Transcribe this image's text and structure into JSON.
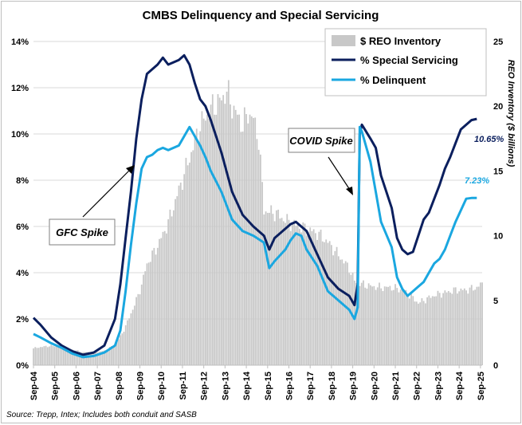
{
  "chart_data": {
    "type": "bar+line",
    "title": "CMBS Delinquency and Special Servicing",
    "y_left_label": "",
    "y_left_ticks": [
      "0%",
      "2%",
      "4%",
      "6%",
      "8%",
      "10%",
      "12%",
      "14%"
    ],
    "y_left_range": [
      0,
      14
    ],
    "y_right_label": "REO Inventory ($ billions)",
    "y_right_ticks": [
      "0",
      "5",
      "10",
      "15",
      "20",
      "25"
    ],
    "y_right_range": [
      0,
      25
    ],
    "x_range": [
      2004.67,
      2025.75
    ],
    "x_tick_labels": [
      "Sep-04",
      "Sep-05",
      "Sep-06",
      "Sep-07",
      "Sep-08",
      "Sep-09",
      "Sep-10",
      "Sep-11",
      "Sep-12",
      "Sep-13",
      "Sep-14",
      "Sep-15",
      "Sep-16",
      "Sep-17",
      "Sep-18",
      "Sep-19",
      "Sep-20",
      "Sep-21",
      "Sep-22",
      "Sep-23",
      "Sep-24",
      "Sep-25"
    ],
    "grid": "horizontal",
    "legend_position": "top-right",
    "series": [
      {
        "name": "$ REO Inventory",
        "type": "bar",
        "axis": "right",
        "color": "#c8c8c8",
        "points": [
          [
            2004.67,
            1.3
          ],
          [
            2005.0,
            1.4
          ],
          [
            2005.5,
            1.5
          ],
          [
            2006.0,
            1.4
          ],
          [
            2006.5,
            1.2
          ],
          [
            2007.0,
            1.0
          ],
          [
            2007.5,
            1.0
          ],
          [
            2008.0,
            1.1
          ],
          [
            2008.5,
            1.6
          ],
          [
            2008.75,
            2.2
          ],
          [
            2009.0,
            3.0
          ],
          [
            2009.25,
            4.0
          ],
          [
            2009.5,
            5.0
          ],
          [
            2009.75,
            6.2
          ],
          [
            2010.0,
            7.8
          ],
          [
            2010.5,
            9.2
          ],
          [
            2011.0,
            11.0
          ],
          [
            2011.5,
            13.5
          ],
          [
            2012.0,
            16.0
          ],
          [
            2012.5,
            18.5
          ],
          [
            2013.0,
            19.8
          ],
          [
            2013.5,
            20.5
          ],
          [
            2013.75,
            21.2
          ],
          [
            2014.0,
            20.0
          ],
          [
            2014.5,
            18.5
          ],
          [
            2014.75,
            19.5
          ],
          [
            2015.0,
            19.0
          ],
          [
            2015.25,
            17.5
          ],
          [
            2015.5,
            12.0
          ],
          [
            2015.75,
            11.8
          ],
          [
            2016.0,
            11.8
          ],
          [
            2016.5,
            11.2
          ],
          [
            2017.0,
            10.8
          ],
          [
            2017.5,
            10.5
          ],
          [
            2018.0,
            10.2
          ],
          [
            2018.5,
            9.5
          ],
          [
            2019.0,
            8.5
          ],
          [
            2019.5,
            7.5
          ],
          [
            2019.75,
            6.5
          ],
          [
            2020.0,
            6.3
          ],
          [
            2020.5,
            6.1
          ],
          [
            2021.0,
            6.0
          ],
          [
            2021.5,
            6.0
          ],
          [
            2022.0,
            5.8
          ],
          [
            2022.5,
            5.2
          ],
          [
            2022.75,
            4.8
          ],
          [
            2023.0,
            5.0
          ],
          [
            2023.5,
            5.4
          ],
          [
            2024.0,
            5.6
          ],
          [
            2024.5,
            5.8
          ],
          [
            2025.0,
            5.8
          ],
          [
            2025.5,
            6.0
          ],
          [
            2025.75,
            6.3
          ]
        ]
      },
      {
        "name": "% Special Servicing",
        "type": "line",
        "axis": "left",
        "color": "#0b1f5e",
        "end_label": "10.65%",
        "points": [
          [
            2004.67,
            2.05
          ],
          [
            2005.0,
            1.75
          ],
          [
            2005.5,
            1.2
          ],
          [
            2006.0,
            0.85
          ],
          [
            2006.5,
            0.6
          ],
          [
            2007.0,
            0.45
          ],
          [
            2007.5,
            0.55
          ],
          [
            2008.0,
            0.85
          ],
          [
            2008.5,
            2.0
          ],
          [
            2008.75,
            3.5
          ],
          [
            2009.0,
            5.5
          ],
          [
            2009.25,
            7.5
          ],
          [
            2009.5,
            9.8
          ],
          [
            2009.75,
            11.5
          ],
          [
            2010.0,
            12.6
          ],
          [
            2010.5,
            13.0
          ],
          [
            2010.75,
            13.3
          ],
          [
            2011.0,
            13.0
          ],
          [
            2011.5,
            13.2
          ],
          [
            2011.75,
            13.4
          ],
          [
            2012.0,
            13.0
          ],
          [
            2012.25,
            12.2
          ],
          [
            2012.5,
            11.5
          ],
          [
            2012.75,
            11.2
          ],
          [
            2013.0,
            10.6
          ],
          [
            2013.5,
            9.2
          ],
          [
            2014.0,
            7.5
          ],
          [
            2014.5,
            6.5
          ],
          [
            2015.0,
            6.0
          ],
          [
            2015.5,
            5.6
          ],
          [
            2015.75,
            5.0
          ],
          [
            2016.0,
            5.5
          ],
          [
            2016.5,
            5.9
          ],
          [
            2016.75,
            6.1
          ],
          [
            2017.0,
            6.2
          ],
          [
            2017.5,
            5.8
          ],
          [
            2018.0,
            4.8
          ],
          [
            2018.5,
            3.8
          ],
          [
            2019.0,
            3.3
          ],
          [
            2019.5,
            3.0
          ],
          [
            2019.75,
            2.6
          ],
          [
            2019.9,
            3.5
          ],
          [
            2020.0,
            10.0
          ],
          [
            2020.1,
            10.4
          ],
          [
            2020.5,
            9.8
          ],
          [
            2020.75,
            9.4
          ],
          [
            2021.0,
            8.2
          ],
          [
            2021.5,
            6.8
          ],
          [
            2021.75,
            5.5
          ],
          [
            2022.0,
            5.0
          ],
          [
            2022.25,
            4.8
          ],
          [
            2022.5,
            4.9
          ],
          [
            2022.75,
            5.6
          ],
          [
            2023.0,
            6.3
          ],
          [
            2023.25,
            6.6
          ],
          [
            2023.5,
            7.2
          ],
          [
            2023.75,
            7.8
          ],
          [
            2024.0,
            8.5
          ],
          [
            2024.25,
            9.0
          ],
          [
            2024.5,
            9.6
          ],
          [
            2024.75,
            10.2
          ],
          [
            2025.0,
            10.4
          ],
          [
            2025.25,
            10.6
          ],
          [
            2025.5,
            10.65
          ]
        ]
      },
      {
        "name": "% Delinquent",
        "type": "line",
        "axis": "left",
        "color": "#1aa7e0",
        "end_label": "7.23%",
        "points": [
          [
            2004.67,
            1.35
          ],
          [
            2005.0,
            1.2
          ],
          [
            2005.5,
            0.95
          ],
          [
            2006.0,
            0.75
          ],
          [
            2006.5,
            0.5
          ],
          [
            2007.0,
            0.35
          ],
          [
            2007.5,
            0.4
          ],
          [
            2008.0,
            0.55
          ],
          [
            2008.5,
            0.85
          ],
          [
            2008.75,
            1.5
          ],
          [
            2009.0,
            3.2
          ],
          [
            2009.25,
            5.2
          ],
          [
            2009.5,
            7.0
          ],
          [
            2009.75,
            8.5
          ],
          [
            2010.0,
            9.0
          ],
          [
            2010.25,
            9.1
          ],
          [
            2010.5,
            9.3
          ],
          [
            2010.75,
            9.4
          ],
          [
            2011.0,
            9.3
          ],
          [
            2011.5,
            9.5
          ],
          [
            2012.0,
            10.3
          ],
          [
            2012.5,
            9.5
          ],
          [
            2012.75,
            9.0
          ],
          [
            2013.0,
            8.4
          ],
          [
            2013.5,
            7.5
          ],
          [
            2014.0,
            6.3
          ],
          [
            2014.5,
            5.8
          ],
          [
            2015.0,
            5.6
          ],
          [
            2015.5,
            5.3
          ],
          [
            2015.75,
            4.2
          ],
          [
            2016.0,
            4.5
          ],
          [
            2016.5,
            5.0
          ],
          [
            2016.75,
            5.4
          ],
          [
            2017.0,
            5.7
          ],
          [
            2017.25,
            5.6
          ],
          [
            2017.5,
            5.0
          ],
          [
            2018.0,
            4.3
          ],
          [
            2018.5,
            3.2
          ],
          [
            2019.0,
            2.8
          ],
          [
            2019.5,
            2.4
          ],
          [
            2019.75,
            2.0
          ],
          [
            2019.9,
            2.5
          ],
          [
            2020.0,
            10.3
          ],
          [
            2020.1,
            10.1
          ],
          [
            2020.5,
            8.8
          ],
          [
            2020.75,
            7.5
          ],
          [
            2021.0,
            6.2
          ],
          [
            2021.5,
            5.1
          ],
          [
            2021.75,
            3.8
          ],
          [
            2022.0,
            3.3
          ],
          [
            2022.25,
            3.0
          ],
          [
            2022.5,
            3.2
          ],
          [
            2022.75,
            3.4
          ],
          [
            2023.0,
            3.6
          ],
          [
            2023.25,
            4.0
          ],
          [
            2023.5,
            4.4
          ],
          [
            2023.75,
            4.6
          ],
          [
            2024.0,
            5.0
          ],
          [
            2024.25,
            5.6
          ],
          [
            2024.5,
            6.2
          ],
          [
            2024.75,
            6.7
          ],
          [
            2025.0,
            7.2
          ],
          [
            2025.25,
            7.23
          ],
          [
            2025.5,
            7.23
          ]
        ]
      }
    ],
    "annotations": [
      "GFC Spike",
      "COVID Spike"
    ],
    "source": "Source: Trepp, Intex; Includes both conduit and SASB"
  }
}
